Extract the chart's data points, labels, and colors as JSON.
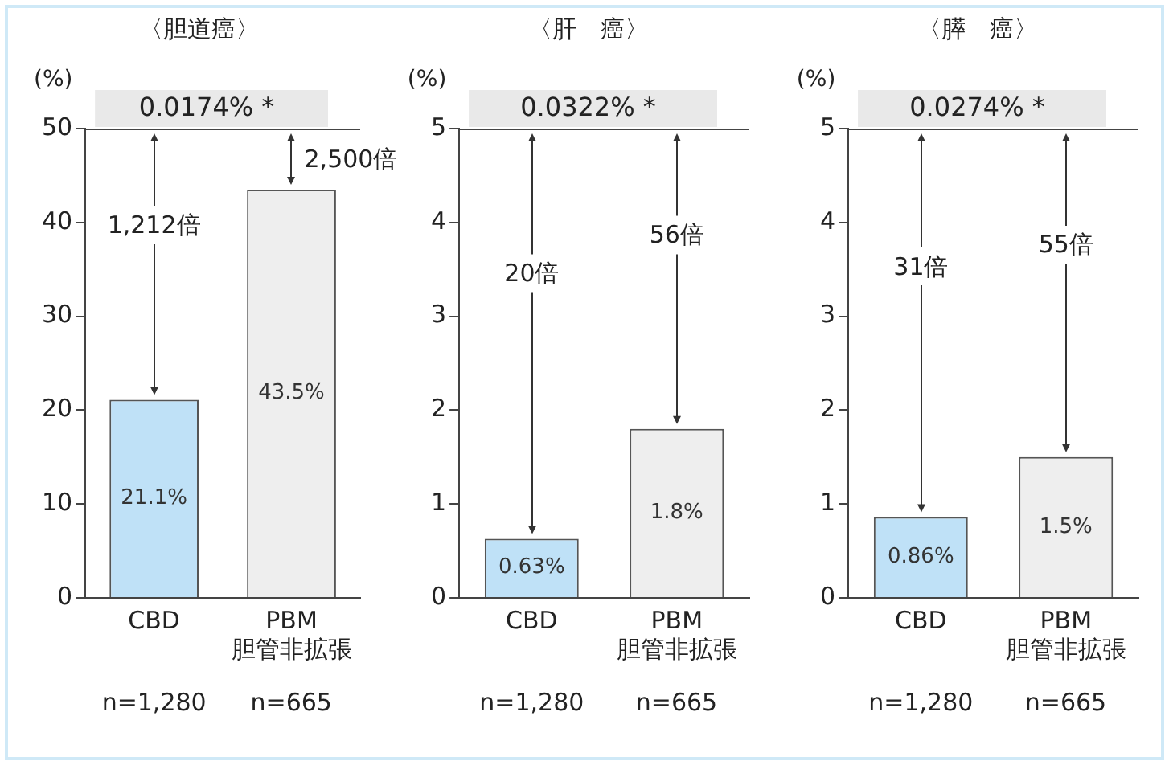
{
  "chart_data": [
    {
      "type": "bar",
      "title": "〈胆道癌〉",
      "ylabel": "(%)",
      "categories": [
        "CBD",
        "PBM\n胆管非拡張"
      ],
      "values": [
        21.1,
        43.5
      ],
      "colors": [
        "#bfe1f7",
        "#eeeeee"
      ],
      "value_labels": [
        "21.1%",
        "43.5%"
      ],
      "ylim": [
        0,
        50
      ],
      "yticks": [
        0,
        10,
        20,
        30,
        40,
        50
      ],
      "annotations": [
        "0.0174% *",
        "1,212倍",
        "2,500倍",
        "n=1,280",
        "n=665"
      ]
    },
    {
      "type": "bar",
      "title": "〈肝　癌〉",
      "ylabel": "(%)",
      "categories": [
        "CBD",
        "PBM\n胆管非拡張"
      ],
      "values": [
        0.63,
        1.8
      ],
      "colors": [
        "#bfe1f7",
        "#eeeeee"
      ],
      "value_labels": [
        "0.63%",
        "1.8%"
      ],
      "ylim": [
        0,
        5
      ],
      "yticks": [
        0,
        1,
        2,
        3,
        4,
        5
      ],
      "annotations": [
        "0.0322% *",
        "20倍",
        "56倍",
        "n=1,280",
        "n=665"
      ]
    },
    {
      "type": "bar",
      "title": "〈膵　癌〉",
      "ylabel": "(%)",
      "categories": [
        "CBD",
        "PBM\n胆管非拡張"
      ],
      "values": [
        0.86,
        1.5
      ],
      "colors": [
        "#bfe1f7",
        "#eeeeee"
      ],
      "value_labels": [
        "0.86%",
        "1.5%"
      ],
      "ylim": [
        0,
        5
      ],
      "yticks": [
        0,
        1,
        2,
        3,
        4,
        5
      ],
      "annotations": [
        "0.0274% *",
        "31倍",
        "55倍",
        "n=1,280",
        "n=665"
      ]
    }
  ]
}
